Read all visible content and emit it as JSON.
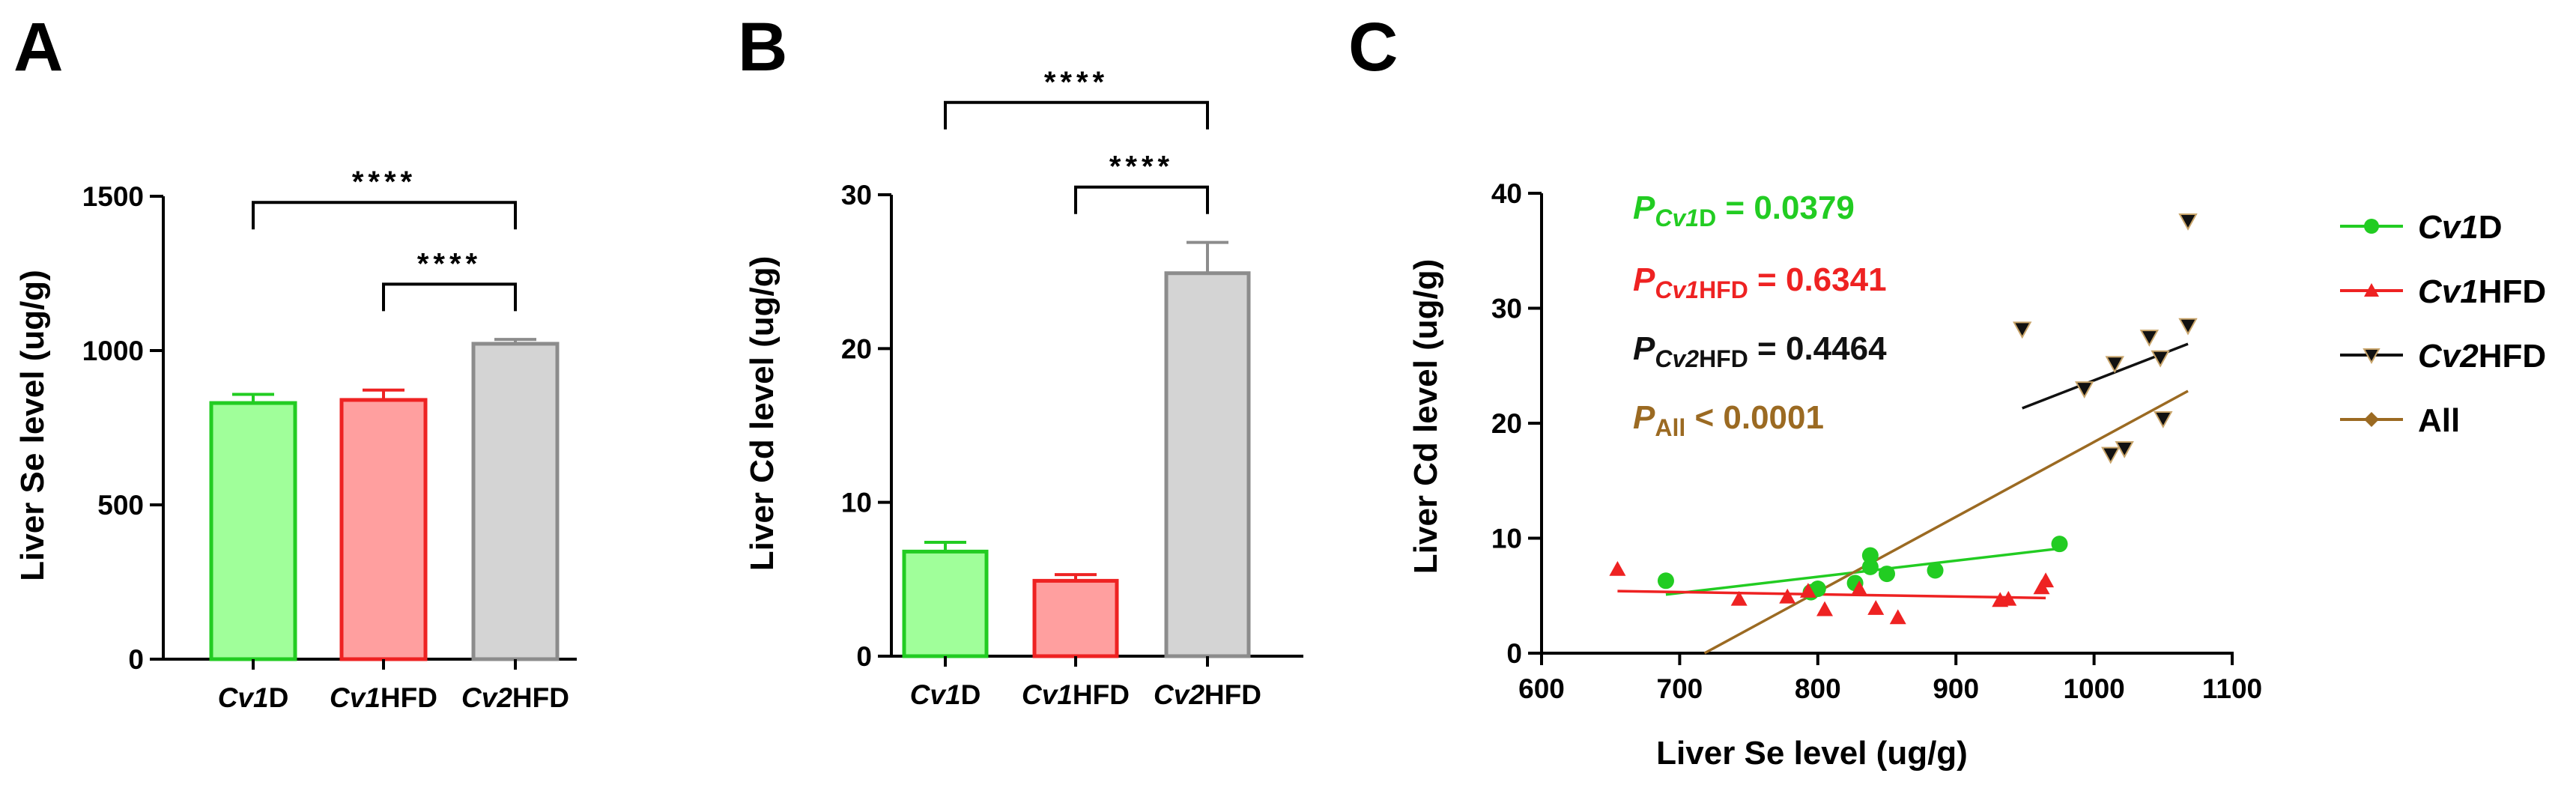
{
  "panels": [
    {
      "label": "A",
      "chart_data": {
        "type": "bar",
        "ylabel": "Liver Se level (ug/g)",
        "ylim": [
          0,
          1500
        ],
        "yticks": [
          0,
          500,
          1000,
          1500
        ],
        "categories": [
          {
            "italic": "Cv1",
            "rest": "D",
            "value": 830,
            "error": 28,
            "fill": "#a0ff9a",
            "stroke": "#22cc22"
          },
          {
            "italic": "Cv1",
            "rest": "HFD",
            "value": 840,
            "error": 32,
            "fill": "#ff9f9f",
            "stroke": "#ee2222"
          },
          {
            "italic": "Cv2",
            "rest": "HFD",
            "value": 1022,
            "error": 14,
            "fill": "#d4d4d4",
            "stroke": "#8c8c8c"
          }
        ],
        "brackets": [
          {
            "from": 0,
            "to": 2,
            "y": 1480,
            "label": "****"
          },
          {
            "from": 1,
            "to": 2,
            "y": 1215,
            "label": "****"
          }
        ]
      }
    },
    {
      "label": "B",
      "chart_data": {
        "type": "bar",
        "ylabel": "Liver Cd level (ug/g)",
        "ylim": [
          0,
          30
        ],
        "yticks": [
          0,
          10,
          20,
          30
        ],
        "categories": [
          {
            "italic": "Cv1",
            "rest": "D",
            "value": 6.8,
            "error": 0.6,
            "fill": "#a0ff9a",
            "stroke": "#22cc22"
          },
          {
            "italic": "Cv1",
            "rest": "HFD",
            "value": 4.9,
            "error": 0.4,
            "fill": "#ff9f9f",
            "stroke": "#ee2222"
          },
          {
            "italic": "Cv2",
            "rest": "HFD",
            "value": 24.9,
            "error": 2.0,
            "fill": "#d4d4d4",
            "stroke": "#8c8c8c"
          }
        ],
        "brackets": [
          {
            "from": 0,
            "to": 2,
            "y": 36,
            "label": "****"
          },
          {
            "from": 1,
            "to": 2,
            "y": 30.5,
            "label": "****"
          }
        ]
      }
    },
    {
      "label": "C",
      "chart_data": {
        "type": "scatter",
        "xlabel": "Liver Se level (ug/g)",
        "ylabel": "Liver Cd level (ug/g)",
        "xlim": [
          600,
          1100
        ],
        "ylim": [
          0,
          40
        ],
        "xticks": [
          600,
          700,
          800,
          900,
          1000,
          1100
        ],
        "yticks": [
          0,
          10,
          20,
          30,
          40
        ],
        "series": [
          {
            "name_italic": "Cv1",
            "name_rest": "D",
            "color": "#22cc22",
            "marker": "circle",
            "points": [
              [
                690,
                6.3
              ],
              [
                795,
                5.3
              ],
              [
                800,
                5.6
              ],
              [
                827,
                6.1
              ],
              [
                838,
                8.5
              ],
              [
                838,
                7.5
              ],
              [
                850,
                6.9
              ],
              [
                885,
                7.2
              ],
              [
                975,
                9.5
              ]
            ],
            "fit": [
              [
                690,
                5.1
              ],
              [
                975,
                9.1
              ]
            ]
          },
          {
            "name_italic": "Cv1",
            "name_rest": "HFD",
            "color": "#ee2222",
            "marker": "triangle",
            "points": [
              [
                655,
                7.3
              ],
              [
                743,
                4.7
              ],
              [
                778,
                4.9
              ],
              [
                793,
                5.4
              ],
              [
                805,
                3.8
              ],
              [
                830,
                5.6
              ],
              [
                842,
                3.9
              ],
              [
                858,
                3.1
              ],
              [
                932,
                4.6
              ],
              [
                938,
                4.7
              ],
              [
                962,
                5.7
              ],
              [
                965,
                6.3
              ]
            ],
            "fit": [
              [
                655,
                5.4
              ],
              [
                965,
                4.8
              ]
            ]
          },
          {
            "name_italic": "Cv2",
            "name_rest": "HFD",
            "color": "#111111",
            "marker": "triangle-down",
            "points": [
              [
                948,
                28.2
              ],
              [
                993,
                23.0
              ],
              [
                1012,
                17.3
              ],
              [
                1015,
                25.2
              ],
              [
                1022,
                17.8
              ],
              [
                1040,
                27.5
              ],
              [
                1048,
                25.7
              ],
              [
                1050,
                20.4
              ],
              [
                1068,
                28.5
              ],
              [
                1068,
                37.6
              ]
            ],
            "fit": [
              [
                948,
                21.3
              ],
              [
                1068,
                26.9
              ]
            ]
          },
          {
            "name": "All",
            "color": "#9b6a22",
            "marker": "diamond",
            "points": [],
            "fit": [
              [
                718,
                0
              ],
              [
                1068,
                22.8
              ]
            ]
          }
        ],
        "stats": [
          {
            "italic": "P",
            "sub": "Cv1",
            "sub_rest": "D",
            "text": " = 0.0379",
            "color": "#22cc22"
          },
          {
            "italic": "P",
            "sub": "Cv1",
            "sub_rest": "HFD",
            "text": " = 0.6341",
            "color": "#ee2222"
          },
          {
            "italic": "P",
            "sub": "Cv2",
            "sub_rest": "HFD",
            "text": " = 0.4464",
            "color": "#111111"
          },
          {
            "italic": "P",
            "sub": "",
            "sub_rest": "All",
            "text": " < 0.0001",
            "color": "#9b6a22"
          }
        ]
      }
    }
  ]
}
